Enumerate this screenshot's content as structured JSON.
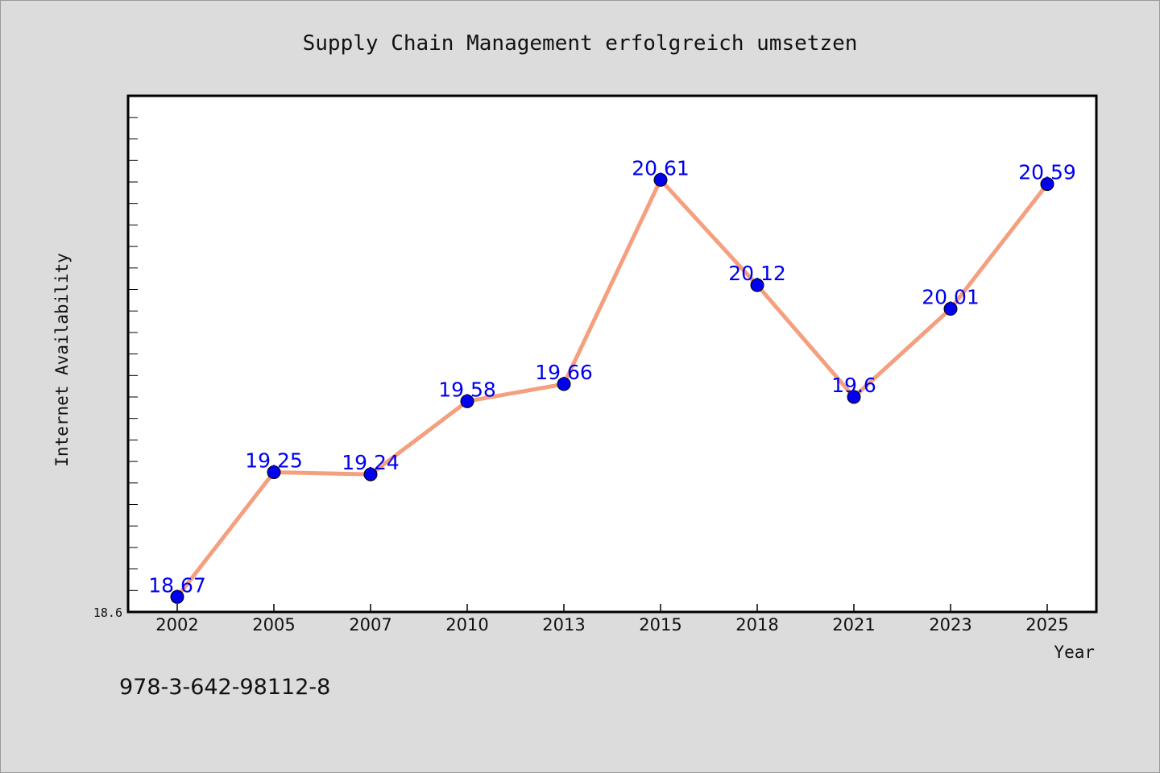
{
  "chart_data": {
    "type": "line",
    "title": "Supply Chain Management erfolgreich umsetzen",
    "xlabel": "Year",
    "ylabel": "Internet Availability",
    "categories": [
      "2002",
      "2005",
      "2007",
      "2010",
      "2013",
      "2015",
      "2018",
      "2021",
      "2023",
      "2025"
    ],
    "series": [
      {
        "values": [
          18.67,
          19.25,
          19.24,
          19.58,
          19.66,
          20.61,
          20.12,
          19.6,
          20.01,
          20.59
        ]
      }
    ],
    "data_labels": [
      "18.67",
      "19.25",
      "19.24",
      "19.58",
      "19.66",
      "20.61",
      "20.12",
      "19.6",
      "20.01",
      "20.59"
    ],
    "yticks": [
      "18.6"
    ],
    "ylim": [
      18.6,
      21.0
    ],
    "grid": false,
    "legend": "none",
    "colors": {
      "line": "#f4a07f",
      "marker": "#0000ee",
      "label": "#0000ee",
      "plot_bg": "#ffffff",
      "figure_bg": "#dcdcdc"
    }
  },
  "footer": {
    "isbn": "978-3-642-98112-8"
  }
}
